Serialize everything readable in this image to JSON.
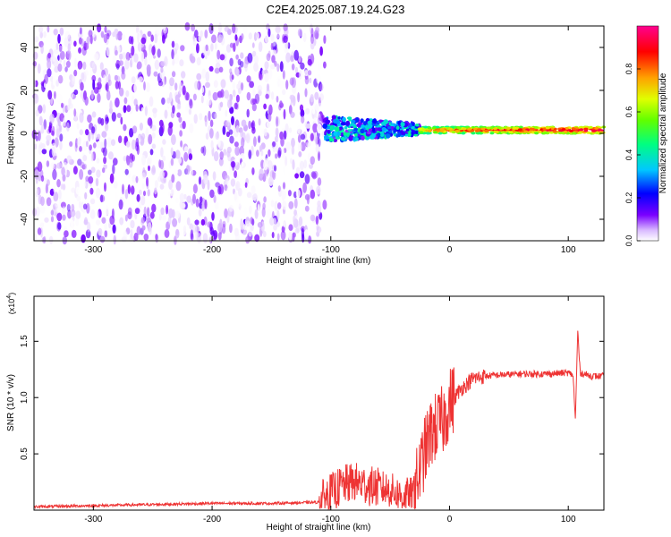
{
  "title": "C2E4.2025.087.19.24.G23",
  "chart_data": [
    {
      "type": "heatmap",
      "xlabel": "Height of straight line (km)",
      "ylabel": "Frequency (Hz)",
      "xlim": [
        -350,
        130
      ],
      "ylim": [
        -50,
        50
      ],
      "xticks": [
        -300,
        -200,
        -100,
        0,
        100
      ],
      "yticks": [
        -40,
        -20,
        0,
        20,
        40
      ],
      "colorbar": {
        "label": "Normalized spectral amplitude",
        "range": [
          0.0,
          1.0
        ],
        "ticks": [
          0.0,
          0.2,
          0.4,
          0.6,
          0.8
        ],
        "colors": [
          "#ffffff",
          "#c890ff",
          "#7a00ff",
          "#0000ff",
          "#00c8ff",
          "#00ff80",
          "#80ff00",
          "#ffff00",
          "#ffa000",
          "#ff0000",
          "#ff0080"
        ]
      },
      "regions": [
        {
          "x_range": [
            -350,
            -105
          ],
          "freq_range": [
            -50,
            50
          ],
          "amplitude_range": [
            0.0,
            0.15
          ],
          "pattern": "broadband noise"
        },
        {
          "x_range": [
            -105,
            -25
          ],
          "center_freq": 2,
          "freq_halfwidth": 6,
          "amplitude_range": [
            0.1,
            0.45
          ],
          "pattern": "narrowing band"
        },
        {
          "x_range": [
            -25,
            130
          ],
          "center_freq": 1.5,
          "freq_halfwidth": 1.5,
          "amplitude_range": [
            0.4,
            0.95
          ],
          "pattern": "narrow tone"
        }
      ]
    },
    {
      "type": "line",
      "xlabel": "Height of straight line (km)",
      "ylabel": "SNR (10 * v/v)",
      "y_scale_label": "(x10",
      "y_scale_exp": "4",
      "y_scale_close": ")",
      "xlim": [
        -350,
        130
      ],
      "ylim": [
        0,
        1.9
      ],
      "xticks": [
        -300,
        -200,
        -100,
        0,
        100
      ],
      "yticks": [
        0.5,
        1.0,
        1.5
      ],
      "color": "#ee3333",
      "series": [
        {
          "x": [
            -350,
            -300,
            -250,
            -200,
            -150,
            -110,
            -100,
            -90,
            -80,
            -70,
            -60,
            -50,
            -40,
            -30,
            -25,
            -20,
            -15,
            -10,
            -5,
            0,
            10,
            20,
            30,
            40,
            60,
            80,
            100,
            104,
            106,
            108,
            110,
            120,
            130
          ],
          "y": [
            0.03,
            0.04,
            0.05,
            0.06,
            0.06,
            0.07,
            0.15,
            0.22,
            0.25,
            0.22,
            0.2,
            0.18,
            0.12,
            0.15,
            0.35,
            0.55,
            0.7,
            0.75,
            0.8,
            0.95,
            1.08,
            1.17,
            1.19,
            1.2,
            1.21,
            1.21,
            1.22,
            1.2,
            0.8,
            1.6,
            1.22,
            1.19,
            1.19
          ]
        }
      ]
    }
  ]
}
